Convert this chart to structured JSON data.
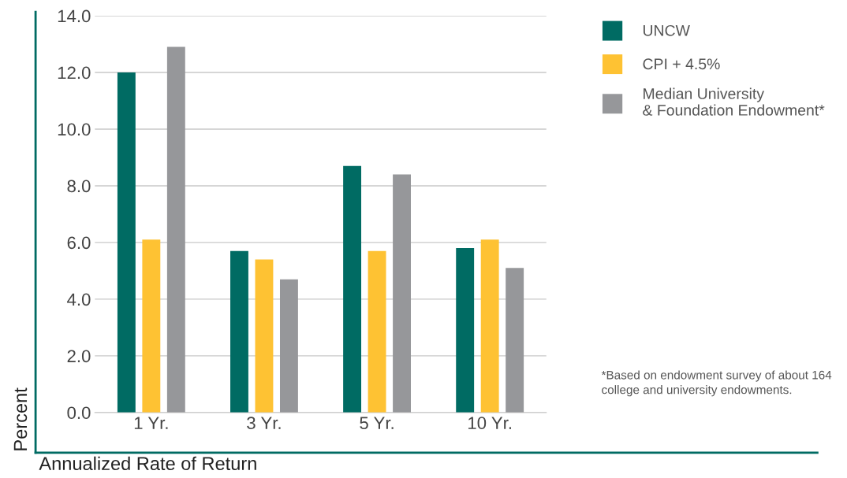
{
  "chart_data": {
    "type": "bar",
    "xlabel": "Annualized Rate of Return",
    "ylabel": "Percent",
    "categories": [
      "1 Yr.",
      "3 Yr.",
      "5 Yr.",
      "10 Yr."
    ],
    "series": [
      {
        "name": "UNCW",
        "color": "#006b63",
        "values": [
          12.0,
          5.7,
          8.7,
          5.8
        ]
      },
      {
        "name": "CPI + 4.5%",
        "color": "#fec233",
        "values": [
          6.1,
          5.4,
          5.7,
          6.1
        ]
      },
      {
        "name": "Median University\n& Foundation Endowment*",
        "color": "#96979a",
        "values": [
          12.9,
          4.7,
          8.4,
          5.1
        ]
      }
    ],
    "ylim": [
      0,
      14
    ],
    "yticks": [
      {
        "value": 0,
        "label": "0.0"
      },
      {
        "value": 2,
        "label": "2.0"
      },
      {
        "value": 4,
        "label": "4.0"
      },
      {
        "value": 6,
        "label": "6.0"
      },
      {
        "value": 8,
        "label": "8.0"
      },
      {
        "value": 10,
        "label": "10.0"
      },
      {
        "value": 12,
        "label": "12.0"
      },
      {
        "value": 14,
        "label": "14.0"
      }
    ],
    "grid": "y",
    "legend": "top right",
    "annotations": [
      "*Based on endowment survey of about 164\ncollege and university endowments."
    ]
  }
}
